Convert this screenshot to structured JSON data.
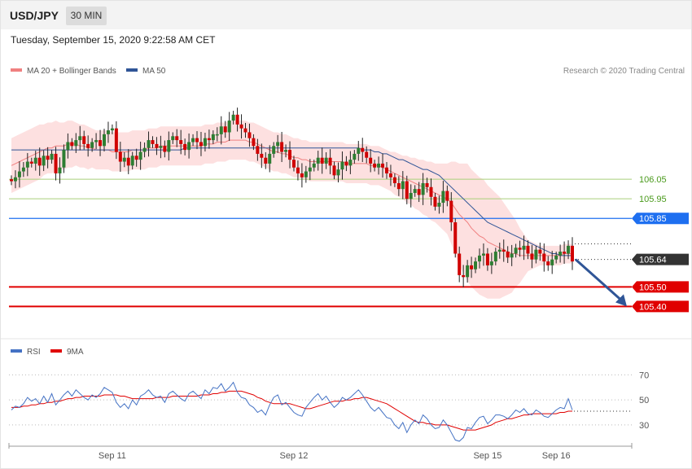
{
  "header": {
    "symbol": "USD/JPY",
    "timeframe": "30 MIN",
    "datetime": "Tuesday, September 15, 2020 9:22:58 AM CET"
  },
  "legend": {
    "ma20": "MA 20 + Bollinger Bands",
    "ma20_color": "#f08080",
    "ma50": "MA 50",
    "ma50_color": "#2f5597",
    "copyright": "Research © 2020 Trading Central"
  },
  "rsi_legend": {
    "rsi": "RSI",
    "rsi_color": "#4472c4",
    "ma": "9MA",
    "ma_color": "#e00000"
  },
  "colors": {
    "up": "#2e7d32",
    "down": "#d00000",
    "band": "#fde0e0",
    "arrow": "#2f5597"
  },
  "chart_data": [
    {
      "type": "candlestick",
      "ylim": [
        105.26,
        106.55
      ],
      "x_ticks": [
        "Sep 11",
        "Sep 12",
        "Sep 15",
        "Sep 16"
      ],
      "levels": [
        {
          "value": 106.05,
          "label": "106.05",
          "style": "thin",
          "color": "#a9cf7a",
          "text_color": "#4a9a1c"
        },
        {
          "value": 105.95,
          "label": "105.95",
          "style": "thin",
          "color": "#a9cf7a",
          "text_color": "#4a9a1c"
        },
        {
          "value": 105.85,
          "label": "105.85",
          "style": "tag",
          "color": "#1e6ff0"
        },
        {
          "value": 105.64,
          "label": "105.64",
          "style": "tag",
          "color": "#333333"
        },
        {
          "value": 105.5,
          "label": "105.50",
          "style": "tag",
          "color": "#e00000"
        },
        {
          "value": 105.4,
          "label": "105.40",
          "style": "tag",
          "color": "#e00000"
        }
      ],
      "closes": [
        106.04,
        106.06,
        106.09,
        106.11,
        106.14,
        106.13,
        106.16,
        106.12,
        106.17,
        106.15,
        106.18,
        106.08,
        106.11,
        106.2,
        106.24,
        106.22,
        106.25,
        106.27,
        106.23,
        106.21,
        106.24,
        106.25,
        106.22,
        106.28,
        106.3,
        106.31,
        106.19,
        106.14,
        106.16,
        106.12,
        106.17,
        106.15,
        106.19,
        106.21,
        106.25,
        106.23,
        106.21,
        106.22,
        106.19,
        106.25,
        106.27,
        106.25,
        106.23,
        106.2,
        106.24,
        106.26,
        106.24,
        106.22,
        106.26,
        106.25,
        106.28,
        106.28,
        106.32,
        106.29,
        106.35,
        106.38,
        106.33,
        106.31,
        106.29,
        106.26,
        106.22,
        106.18,
        106.16,
        106.13,
        106.18,
        106.22,
        106.24,
        106.19,
        106.2,
        106.15,
        106.11,
        106.08,
        106.06,
        106.09,
        106.11,
        106.13,
        106.16,
        106.13,
        106.16,
        106.12,
        106.07,
        106.1,
        106.14,
        106.12,
        106.15,
        106.18,
        106.21,
        106.19,
        106.16,
        106.13,
        106.11,
        106.13,
        106.11,
        106.08,
        106.06,
        106.03,
        106.0,
        106.04,
        105.95,
        105.98,
        106.0,
        105.97,
        106.03,
        106.01,
        105.96,
        105.91,
        105.93,
        105.99,
        105.94,
        105.83,
        105.67,
        105.56,
        105.55,
        105.61,
        105.59,
        105.63,
        105.66,
        105.67,
        105.61,
        105.63,
        105.68,
        105.69,
        105.68,
        105.65,
        105.67,
        105.7,
        105.69,
        105.71,
        105.67,
        105.64,
        105.69,
        105.67,
        105.63,
        105.61,
        105.64,
        105.66,
        105.68,
        105.67,
        105.71,
        105.63
      ],
      "rsi": [
        42,
        45,
        44,
        47,
        52,
        49,
        51,
        47,
        53,
        48,
        55,
        46,
        50,
        54,
        57,
        53,
        58,
        55,
        52,
        50,
        54,
        52,
        55,
        60,
        58,
        56,
        48,
        44,
        47,
        43,
        50,
        46,
        53,
        55,
        58,
        54,
        52,
        53,
        48,
        55,
        57,
        54,
        51,
        49,
        55,
        57,
        54,
        51,
        58,
        55,
        60,
        59,
        63,
        57,
        60,
        64,
        56,
        52,
        51,
        46,
        44,
        40,
        42,
        38,
        46,
        52,
        54,
        46,
        48,
        44,
        40,
        38,
        37,
        44,
        48,
        52,
        55,
        50,
        53,
        48,
        44,
        47,
        52,
        50,
        52,
        55,
        58,
        54,
        49,
        44,
        41,
        44,
        40,
        36,
        35,
        30,
        27,
        32,
        24,
        30,
        34,
        31,
        38,
        35,
        30,
        27,
        28,
        34,
        30,
        24,
        18,
        17,
        20,
        28,
        27,
        32,
        36,
        37,
        31,
        34,
        38,
        38,
        37,
        35,
        38,
        42,
        40,
        43,
        39,
        38,
        42,
        40,
        37,
        36,
        39,
        42,
        44,
        43,
        51,
        42
      ],
      "rsi_ma": [
        44,
        44,
        44,
        45,
        45,
        46,
        46,
        47,
        47,
        48,
        48,
        49,
        49,
        50,
        51,
        51,
        52,
        52,
        53,
        53,
        53,
        53,
        53,
        54,
        54,
        54,
        54,
        53,
        53,
        52,
        51,
        51,
        51,
        51,
        51,
        51,
        52,
        52,
        52,
        52,
        53,
        53,
        53,
        53,
        53,
        53,
        53,
        54,
        54,
        54,
        55,
        55,
        56,
        56,
        57,
        57,
        57,
        57,
        56,
        55,
        54,
        52,
        51,
        49,
        48,
        47,
        47,
        47,
        47,
        47,
        46,
        45,
        44,
        43,
        43,
        44,
        45,
        46,
        47,
        48,
        49,
        49,
        49,
        50,
        50,
        51,
        51,
        52,
        52,
        51,
        50,
        49,
        48,
        47,
        45,
        43,
        41,
        39,
        37,
        35,
        33,
        32,
        32,
        31,
        31,
        30,
        30,
        30,
        30,
        29,
        28,
        27,
        26,
        26,
        26,
        26,
        27,
        28,
        29,
        30,
        32,
        33,
        34,
        35,
        35,
        36,
        37,
        38,
        38,
        39,
        39,
        39,
        39,
        39,
        39,
        39,
        40,
        40,
        41,
        41
      ],
      "ma20": [
        106.12,
        106.13,
        106.14,
        106.15,
        106.16,
        106.17,
        106.18,
        106.19,
        106.2,
        106.21,
        106.21,
        106.22,
        106.22,
        106.22,
        106.23,
        106.23,
        106.23,
        106.22,
        106.22,
        106.21,
        106.21,
        106.2,
        106.2,
        106.2,
        106.2,
        106.19,
        106.19,
        106.19,
        106.19,
        106.19,
        106.2,
        106.2,
        106.2,
        106.2,
        106.21,
        106.21,
        106.21,
        106.22,
        106.22,
        106.22,
        106.22,
        106.22,
        106.22,
        106.22,
        106.22,
        106.22,
        106.22,
        106.22,
        106.23,
        106.23,
        106.23,
        106.24,
        106.24,
        106.24,
        106.25,
        106.25,
        106.25,
        106.25,
        106.25,
        106.24,
        106.24,
        106.23,
        106.22,
        106.21,
        106.2,
        106.19,
        106.19,
        106.18,
        106.18,
        106.17,
        106.16,
        106.16,
        106.15,
        106.15,
        106.14,
        106.14,
        106.14,
        106.14,
        106.14,
        106.14,
        106.14,
        106.14,
        106.14,
        106.13,
        106.13,
        106.13,
        106.13,
        106.13,
        106.13,
        106.12,
        106.12,
        106.12,
        106.11,
        106.1,
        106.09,
        106.08,
        106.07,
        106.06,
        106.05,
        106.04,
        106.03,
        106.02,
        106.01,
        106.0,
        105.99,
        105.98,
        105.97,
        105.96,
        105.95,
        105.93,
        105.9,
        105.87,
        105.85,
        105.83,
        105.8,
        105.78,
        105.76,
        105.75,
        105.73,
        105.72,
        105.71,
        105.7,
        105.69,
        105.68,
        105.67,
        105.67,
        105.66,
        105.66,
        105.66,
        105.66,
        105.66,
        105.66,
        105.66,
        105.66,
        105.66,
        105.66,
        105.66,
        105.67,
        105.67,
        105.67
      ],
      "band_width": [
        0.14,
        0.14,
        0.14,
        0.14,
        0.14,
        0.14,
        0.14,
        0.14,
        0.13,
        0.13,
        0.13,
        0.13,
        0.12,
        0.12,
        0.12,
        0.12,
        0.11,
        0.11,
        0.11,
        0.11,
        0.1,
        0.1,
        0.1,
        0.1,
        0.1,
        0.1,
        0.1,
        0.1,
        0.1,
        0.1,
        0.1,
        0.1,
        0.1,
        0.1,
        0.1,
        0.1,
        0.1,
        0.1,
        0.1,
        0.1,
        0.1,
        0.1,
        0.1,
        0.1,
        0.1,
        0.1,
        0.1,
        0.1,
        0.1,
        0.1,
        0.1,
        0.1,
        0.1,
        0.1,
        0.1,
        0.1,
        0.1,
        0.1,
        0.1,
        0.1,
        0.1,
        0.1,
        0.1,
        0.1,
        0.1,
        0.1,
        0.1,
        0.1,
        0.1,
        0.1,
        0.1,
        0.1,
        0.1,
        0.1,
        0.1,
        0.1,
        0.1,
        0.1,
        0.1,
        0.1,
        0.1,
        0.1,
        0.1,
        0.1,
        0.1,
        0.1,
        0.1,
        0.1,
        0.1,
        0.1,
        0.1,
        0.1,
        0.1,
        0.1,
        0.1,
        0.11,
        0.11,
        0.11,
        0.12,
        0.12,
        0.13,
        0.13,
        0.14,
        0.14,
        0.15,
        0.15,
        0.16,
        0.17,
        0.18,
        0.21,
        0.24,
        0.26,
        0.28,
        0.3,
        0.3,
        0.3,
        0.3,
        0.3,
        0.29,
        0.28,
        0.27,
        0.26,
        0.24,
        0.22,
        0.2,
        0.17,
        0.14,
        0.11,
        0.08,
        0.07,
        0.06,
        0.05,
        0.05,
        0.05,
        0.05,
        0.05,
        0.05,
        0.05,
        0.05,
        0.05
      ],
      "ma50": [
        106.2,
        106.2,
        106.2,
        106.2,
        106.2,
        106.2,
        106.2,
        106.2,
        106.2,
        106.2,
        106.2,
        106.2,
        106.2,
        106.2,
        106.2,
        106.2,
        106.2,
        106.2,
        106.2,
        106.2,
        106.2,
        106.2,
        106.2,
        106.2,
        106.2,
        106.2,
        106.2,
        106.2,
        106.2,
        106.2,
        106.2,
        106.2,
        106.2,
        106.2,
        106.2,
        106.2,
        106.2,
        106.2,
        106.2,
        106.2,
        106.2,
        106.2,
        106.2,
        106.21,
        106.21,
        106.21,
        106.21,
        106.21,
        106.21,
        106.21,
        106.21,
        106.21,
        106.21,
        106.21,
        106.21,
        106.21,
        106.21,
        106.21,
        106.21,
        106.21,
        106.21,
        106.21,
        106.21,
        106.21,
        106.21,
        106.21,
        106.21,
        106.21,
        106.21,
        106.21,
        106.21,
        106.21,
        106.21,
        106.21,
        106.21,
        106.21,
        106.21,
        106.21,
        106.21,
        106.21,
        106.21,
        106.21,
        106.21,
        106.21,
        106.21,
        106.21,
        106.21,
        106.2,
        106.2,
        106.2,
        106.19,
        106.19,
        106.18,
        106.18,
        106.17,
        106.16,
        106.15,
        106.15,
        106.14,
        106.13,
        106.12,
        106.11,
        106.1,
        106.1,
        106.09,
        106.08,
        106.07,
        106.05,
        106.03,
        106.01,
        105.99,
        105.97,
        105.95,
        105.93,
        105.91,
        105.89,
        105.87,
        105.85,
        105.83,
        105.82,
        105.81,
        105.8,
        105.79,
        105.78,
        105.77,
        105.76,
        105.75,
        105.74,
        105.73,
        105.72,
        105.71,
        105.7,
        105.69,
        105.68,
        105.67,
        105.67,
        105.66,
        105.66,
        105.66,
        105.66
      ]
    },
    {
      "type": "line",
      "ylim": [
        15,
        80
      ],
      "y_ticks": [
        "70",
        "50",
        "30"
      ],
      "series": [
        {
          "name": "RSI"
        },
        {
          "name": "9MA"
        }
      ]
    }
  ]
}
